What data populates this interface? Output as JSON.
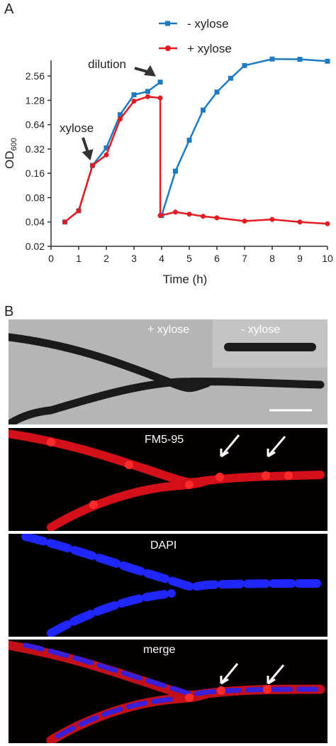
{
  "panel_a_letter": "A",
  "panel_b_letter": "B",
  "chart_data": {
    "type": "line",
    "xlabel": "Time (h)",
    "ylabel": "OD600",
    "ylabel_main": "OD",
    "ylabel_sub": "600",
    "y_scale": "log2",
    "xlim": [
      0,
      10
    ],
    "ylim": [
      0.02,
      4
    ],
    "x_ticks": [
      "0",
      "1",
      "2",
      "3",
      "4",
      "5",
      "6",
      "7",
      "8",
      "9",
      "10"
    ],
    "y_ticks": [
      {
        "value": 0.02,
        "label": "0.02"
      },
      {
        "value": 0.04,
        "label": "0.04"
      },
      {
        "value": 0.08,
        "label": "0.08"
      },
      {
        "value": 0.16,
        "label": "0.16"
      },
      {
        "value": 0.32,
        "label": "0.32"
      },
      {
        "value": 0.64,
        "label": "0.64"
      },
      {
        "value": 1.28,
        "label": "1.28"
      },
      {
        "value": 2.56,
        "label": "2.56"
      }
    ],
    "legend_position": "top-right",
    "series": [
      {
        "name": "- xylose",
        "color": "#1f7bc1",
        "segments": [
          [
            [
              0.5,
              0.04
            ],
            [
              1.0,
              0.055
            ],
            [
              1.5,
              0.2
            ],
            [
              2.0,
              0.33
            ],
            [
              2.5,
              0.85
            ],
            [
              3.0,
              1.5
            ],
            [
              3.5,
              1.65
            ],
            [
              3.95,
              2.15
            ]
          ],
          [
            [
              4.0,
              0.048
            ],
            [
              4.5,
              0.17
            ],
            [
              5.0,
              0.41
            ],
            [
              5.5,
              0.97
            ],
            [
              6.0,
              1.62
            ],
            [
              6.5,
              2.4
            ],
            [
              7.0,
              3.45
            ],
            [
              8.0,
              4.15
            ],
            [
              9.0,
              4.12
            ],
            [
              10.0,
              3.9
            ]
          ]
        ]
      },
      {
        "name": "+ xylose",
        "color": "#e31b23",
        "segments": [
          [
            [
              0.5,
              0.04
            ],
            [
              1.0,
              0.055
            ],
            [
              1.5,
              0.2
            ],
            [
              2.0,
              0.27
            ],
            [
              2.5,
              0.75
            ],
            [
              3.0,
              1.25
            ],
            [
              3.5,
              1.42
            ],
            [
              3.95,
              1.37
            ],
            [
              3.95,
              0.048
            ]
          ],
          [
            [
              3.95,
              0.048
            ],
            [
              4.5,
              0.053
            ],
            [
              5.0,
              0.05
            ],
            [
              5.5,
              0.047
            ],
            [
              6.0,
              0.045
            ],
            [
              7.0,
              0.041
            ],
            [
              8.0,
              0.043
            ],
            [
              9.0,
              0.04
            ],
            [
              10.0,
              0.038
            ]
          ]
        ]
      }
    ],
    "annotations": [
      {
        "text": "dilution",
        "x": 4.0,
        "y": 2.15
      },
      {
        "text": "xylose",
        "x": 1.5,
        "y": 0.2
      }
    ]
  },
  "micrographs": [
    {
      "name": "phase-contrast-panel",
      "labels": [
        "+ xylose"
      ],
      "inset_label": "- xylose"
    },
    {
      "name": "fm5-95-panel",
      "labels": [
        "FM5-95"
      ]
    },
    {
      "name": "dapi-panel",
      "labels": [
        "DAPI"
      ]
    },
    {
      "name": "merge-panel",
      "labels": [
        "merge"
      ]
    }
  ],
  "colors": {
    "minus_xylose": "#1f7bc1",
    "plus_xylose": "#e31b23",
    "membrane_stain": "#e8101c",
    "dna_stain": "#1c1cff"
  }
}
